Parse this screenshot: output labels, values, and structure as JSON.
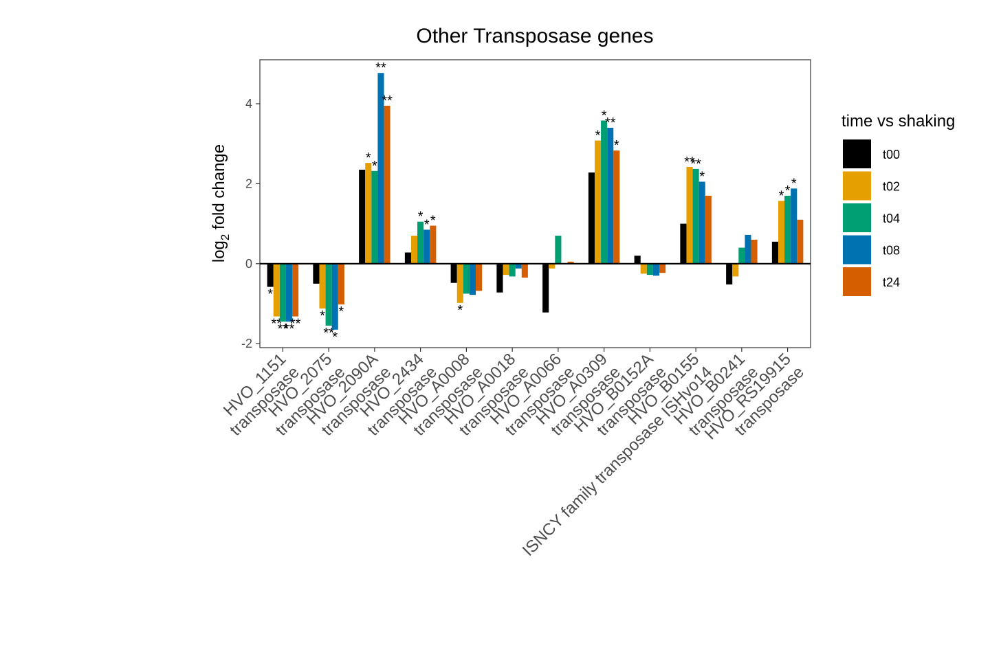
{
  "chart_data": {
    "type": "bar",
    "title": "Other Transposase genes",
    "ylabel_main": "log",
    "ylabel_sub": "2",
    "ylabel_rest": " fold change",
    "ylim": [
      -2.1,
      5.1
    ],
    "y_ticks": [
      -2,
      0,
      2,
      4
    ],
    "categories": [
      [
        "HVO_1151",
        "transposase"
      ],
      [
        "HVO_2075",
        "transposase"
      ],
      [
        "HVO_2090A",
        "transposase"
      ],
      [
        "HVO_2434",
        "transposase"
      ],
      [
        "HVO_A0008",
        "transposase"
      ],
      [
        "HVO_A0018",
        "transposase"
      ],
      [
        "HVO_A0066",
        "transposase"
      ],
      [
        "HVO_A0309",
        "transposase"
      ],
      [
        "HVO_B0152A",
        "transposase"
      ],
      [
        "HVO_B0155",
        "ISNCY family transposase ISHvo14"
      ],
      [
        "HVO_B0241",
        "transposase"
      ],
      [
        "HVO_RS19915",
        "transposase"
      ]
    ],
    "legend_title": "time vs shaking",
    "legend_position": "right",
    "grid": false,
    "series": [
      {
        "name": "t00",
        "color": "#000000",
        "values": [
          -0.58,
          -0.5,
          2.35,
          0.28,
          -0.48,
          -0.72,
          -1.22,
          2.28,
          0.2,
          1.0,
          -0.52,
          0.55
        ],
        "stars": [
          "*",
          "",
          "",
          "",
          "",
          "",
          "",
          "",
          "",
          "",
          "",
          ""
        ]
      },
      {
        "name": "t02",
        "color": "#E69F00",
        "values": [
          -1.32,
          -1.12,
          2.52,
          0.7,
          -0.98,
          -0.28,
          -0.12,
          3.08,
          -0.25,
          2.42,
          -0.32,
          1.57
        ],
        "stars": [
          "**",
          "*",
          "*",
          "",
          "*",
          "",
          "",
          "*",
          "",
          "**",
          "",
          "*"
        ]
      },
      {
        "name": "t04",
        "color": "#009E73",
        "values": [
          -1.45,
          -1.55,
          2.32,
          1.05,
          -0.75,
          -0.32,
          0.7,
          3.58,
          -0.28,
          2.37,
          0.4,
          1.7
        ],
        "stars": [
          "**",
          "**",
          "*",
          "*",
          "",
          "",
          "",
          "*",
          "",
          "**",
          "",
          "*"
        ]
      },
      {
        "name": "t08",
        "color": "#0072B2",
        "values": [
          -1.45,
          -1.65,
          4.77,
          0.85,
          -0.78,
          -0.12,
          0.0,
          3.4,
          -0.3,
          2.05,
          0.72,
          1.88
        ],
        "stars": [
          "**",
          "*",
          "**",
          "*",
          "",
          "",
          "",
          "**",
          "",
          "*",
          "",
          "*"
        ]
      },
      {
        "name": "t24",
        "color": "#D55E00",
        "values": [
          -1.32,
          -1.02,
          3.95,
          0.95,
          -0.68,
          -0.35,
          0.05,
          2.83,
          -0.23,
          1.7,
          0.6,
          1.1
        ],
        "stars": [
          "**",
          "*",
          "**",
          "*",
          "",
          "",
          "",
          "*",
          "",
          "",
          "",
          ""
        ]
      }
    ]
  }
}
